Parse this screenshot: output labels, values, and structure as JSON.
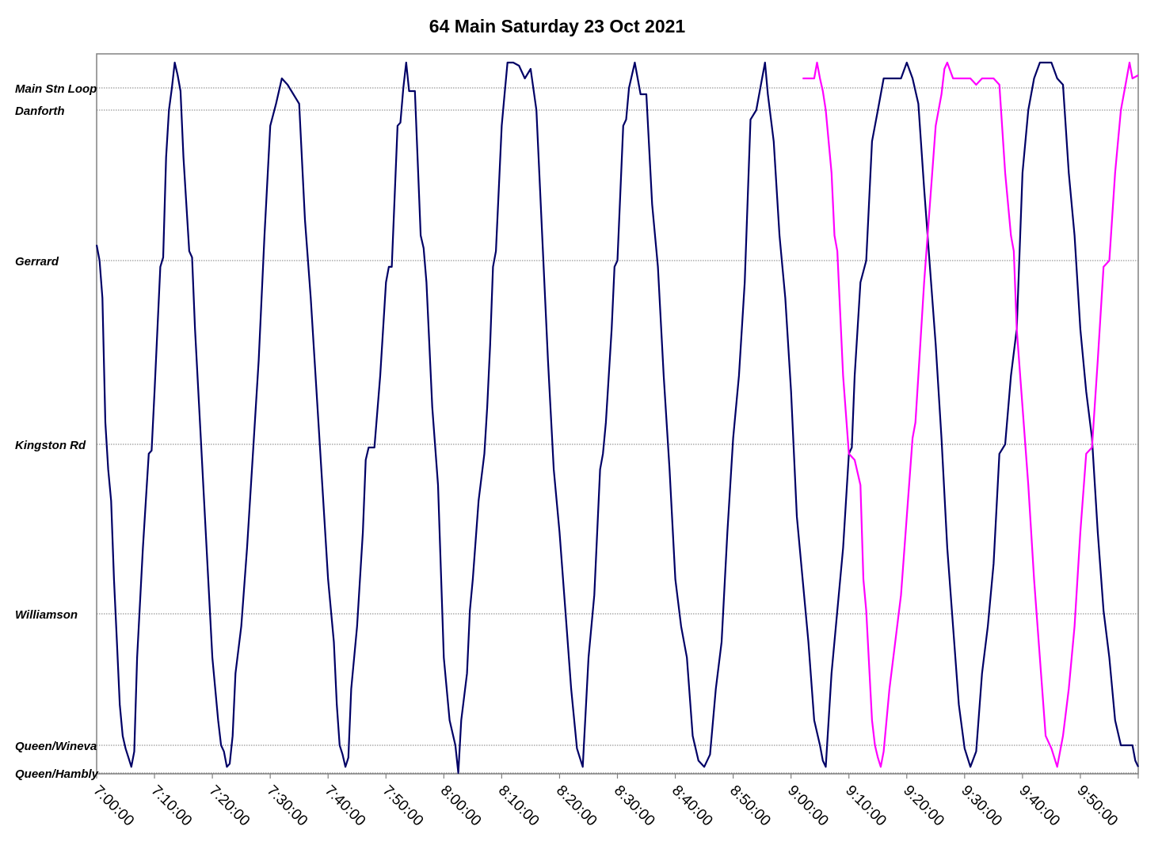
{
  "chart_data": {
    "type": "line",
    "title": "64 Main Saturday 23 Oct 2021",
    "xlabel": "",
    "ylabel": "",
    "xlim": [
      "7:00:00",
      "10:00:00"
    ],
    "stops": [
      {
        "name": "Main Stn Loop",
        "distance": 12.7
      },
      {
        "name": "Danforth",
        "distance": 12.0
      },
      {
        "name": "Gerrard",
        "distance": 7.2
      },
      {
        "name": "Kingston Rd",
        "distance": 1.3
      },
      {
        "name": "Williamson",
        "distance": -4.1
      },
      {
        "name": "Queen/Wineva",
        "distance": -8.3
      },
      {
        "name": "Queen/Hambly",
        "distance": -9.2
      }
    ],
    "x_ticks": [
      "7:00:00",
      "7:10:00",
      "7:20:00",
      "7:30:00",
      "7:40:00",
      "7:50:00",
      "8:00:00",
      "8:10:00",
      "8:20:00",
      "8:30:00",
      "8:40:00",
      "8:50:00",
      "9:00:00",
      "9:10:00",
      "9:20:00",
      "9:30:00",
      "9:40:00",
      "9:50:00"
    ],
    "grid": "horizontal at stops",
    "legend": "none",
    "series": [
      {
        "color": "#000066",
        "points": [
          [
            "7:00:00",
            7.7
          ],
          [
            "7:00:30",
            7.2
          ],
          [
            "7:01:00",
            6.0
          ],
          [
            "7:01:30",
            2.0
          ],
          [
            "7:02:00",
            0.5
          ],
          [
            "7:02:30",
            -0.5
          ],
          [
            "7:03:00",
            -3.0
          ],
          [
            "7:03:30",
            -5.0
          ],
          [
            "7:04:00",
            -7.0
          ],
          [
            "7:04:30",
            -8.0
          ],
          [
            "7:05:00",
            -8.4
          ],
          [
            "7:05:30",
            -8.7
          ],
          [
            "7:06:00",
            -9.0
          ],
          [
            "7:06:30",
            -8.5
          ],
          [
            "7:07:00",
            -5.5
          ],
          [
            "7:08:00",
            -2.0
          ],
          [
            "7:09:00",
            1.0
          ],
          [
            "7:09:30",
            1.1
          ],
          [
            "7:10:00",
            3.0
          ],
          [
            "7:11:00",
            7.0
          ],
          [
            "7:11:30",
            7.3
          ],
          [
            "7:12:00",
            10.5
          ],
          [
            "7:12:30",
            12.0
          ],
          [
            "7:13:00",
            12.7
          ],
          [
            "7:13:30",
            13.5
          ],
          [
            "7:14:00",
            13.1
          ],
          [
            "7:14:30",
            12.6
          ],
          [
            "7:15:00",
            10.5
          ],
          [
            "7:16:00",
            7.5
          ],
          [
            "7:16:30",
            7.3
          ],
          [
            "7:17:00",
            5.0
          ],
          [
            "7:18:00",
            1.5
          ],
          [
            "7:19:00",
            -2.0
          ],
          [
            "7:20:00",
            -5.5
          ],
          [
            "7:21:00",
            -7.5
          ],
          [
            "7:21:30",
            -8.3
          ],
          [
            "7:22:00",
            -8.5
          ],
          [
            "7:22:30",
            -9.0
          ],
          [
            "7:23:00",
            -8.9
          ],
          [
            "7:23:30",
            -8.0
          ],
          [
            "7:24:00",
            -6.0
          ],
          [
            "7:25:00",
            -4.5
          ],
          [
            "7:26:00",
            -2.0
          ],
          [
            "7:27:00",
            1.0
          ],
          [
            "7:28:00",
            4.0
          ],
          [
            "7:29:00",
            8.0
          ],
          [
            "7:30:00",
            11.5
          ],
          [
            "7:31:00",
            12.2
          ],
          [
            "7:32:00",
            13.0
          ],
          [
            "7:33:00",
            12.8
          ],
          [
            "7:34:00",
            12.5
          ],
          [
            "7:35:00",
            12.2
          ],
          [
            "7:36:00",
            8.5
          ],
          [
            "7:37:00",
            6.0
          ],
          [
            "7:38:00",
            3.0
          ],
          [
            "7:39:00",
            0.0
          ],
          [
            "7:40:00",
            -3.0
          ],
          [
            "7:41:00",
            -5.0
          ],
          [
            "7:41:30",
            -7.0
          ],
          [
            "7:42:00",
            -8.3
          ],
          [
            "7:42:30",
            -8.6
          ],
          [
            "7:43:00",
            -9.0
          ],
          [
            "7:43:30",
            -8.7
          ],
          [
            "7:44:00",
            -6.5
          ],
          [
            "7:45:00",
            -4.5
          ],
          [
            "7:46:00",
            -1.5
          ],
          [
            "7:46:30",
            0.8
          ],
          [
            "7:47:00",
            1.2
          ],
          [
            "7:48:00",
            1.2
          ],
          [
            "7:49:00",
            3.5
          ],
          [
            "7:50:00",
            6.5
          ],
          [
            "7:50:30",
            7.0
          ],
          [
            "7:51:00",
            7.0
          ],
          [
            "7:52:00",
            11.5
          ],
          [
            "7:52:30",
            11.6
          ],
          [
            "7:53:00",
            12.7
          ],
          [
            "7:53:30",
            13.5
          ],
          [
            "7:54:00",
            12.6
          ],
          [
            "7:55:00",
            12.6
          ],
          [
            "7:56:00",
            8.0
          ],
          [
            "7:56:30",
            7.6
          ],
          [
            "7:57:00",
            6.5
          ],
          [
            "7:58:00",
            2.5
          ],
          [
            "7:59:00",
            0.0
          ],
          [
            "8:00:00",
            -5.5
          ],
          [
            "8:01:00",
            -7.5
          ],
          [
            "8:02:00",
            -8.3
          ],
          [
            "8:02:30",
            -9.2
          ],
          [
            "8:03:00",
            -7.5
          ],
          [
            "8:04:00",
            -6.0
          ],
          [
            "8:04:30",
            -4.0
          ],
          [
            "8:05:00",
            -3.0
          ],
          [
            "8:06:00",
            -0.5
          ],
          [
            "8:07:00",
            1.0
          ],
          [
            "8:07:30",
            2.5
          ],
          [
            "8:08:00",
            4.5
          ],
          [
            "8:08:30",
            7.0
          ],
          [
            "8:09:00",
            7.5
          ],
          [
            "8:10:00",
            11.5
          ],
          [
            "8:10:30",
            12.5
          ],
          [
            "8:11:00",
            13.5
          ],
          [
            "8:12:00",
            13.5
          ],
          [
            "8:13:00",
            13.4
          ],
          [
            "8:14:00",
            13.0
          ],
          [
            "8:15:00",
            13.3
          ],
          [
            "8:16:00",
            12.0
          ],
          [
            "8:17:00",
            8.0
          ],
          [
            "8:18:00",
            4.0
          ],
          [
            "8:19:00",
            0.5
          ],
          [
            "8:20:00",
            -1.5
          ],
          [
            "8:21:00",
            -4.0
          ],
          [
            "8:22:00",
            -6.5
          ],
          [
            "8:23:00",
            -8.4
          ],
          [
            "8:23:30",
            -8.7
          ],
          [
            "8:24:00",
            -9.0
          ],
          [
            "8:25:00",
            -5.5
          ],
          [
            "8:26:00",
            -3.5
          ],
          [
            "8:27:00",
            0.5
          ],
          [
            "8:27:30",
            1.0
          ],
          [
            "8:28:00",
            2.0
          ],
          [
            "8:29:00",
            5.0
          ],
          [
            "8:29:30",
            7.0
          ],
          [
            "8:30:00",
            7.2
          ],
          [
            "8:31:00",
            11.5
          ],
          [
            "8:31:30",
            11.7
          ],
          [
            "8:32:00",
            12.7
          ],
          [
            "8:33:00",
            13.5
          ],
          [
            "8:34:00",
            12.5
          ],
          [
            "8:35:00",
            12.5
          ],
          [
            "8:36:00",
            9.0
          ],
          [
            "8:37:00",
            7.0
          ],
          [
            "8:38:00",
            3.5
          ],
          [
            "8:39:00",
            0.5
          ],
          [
            "8:40:00",
            -3.0
          ],
          [
            "8:41:00",
            -4.5
          ],
          [
            "8:42:00",
            -5.5
          ],
          [
            "8:43:00",
            -8.0
          ],
          [
            "8:44:00",
            -8.8
          ],
          [
            "8:45:00",
            -9.0
          ],
          [
            "8:46:00",
            -8.6
          ],
          [
            "8:47:00",
            -6.5
          ],
          [
            "8:48:00",
            -5.0
          ],
          [
            "8:49:00",
            -1.5
          ],
          [
            "8:50:00",
            1.5
          ],
          [
            "8:51:00",
            3.5
          ],
          [
            "8:52:00",
            6.5
          ],
          [
            "8:53:00",
            11.7
          ],
          [
            "8:54:00",
            12.0
          ],
          [
            "8:55:00",
            13.0
          ],
          [
            "8:55:30",
            13.5
          ],
          [
            "8:56:00",
            12.5
          ],
          [
            "8:57:00",
            11.0
          ],
          [
            "8:58:00",
            8.0
          ],
          [
            "8:59:00",
            6.0
          ],
          [
            "9:00:00",
            3.0
          ],
          [
            "9:01:00",
            -1.0
          ],
          [
            "9:02:00",
            -3.0
          ],
          [
            "9:03:00",
            -5.0
          ],
          [
            "9:04:00",
            -7.5
          ],
          [
            "9:05:00",
            -8.3
          ],
          [
            "9:05:30",
            -8.8
          ],
          [
            "9:06:00",
            -9.0
          ],
          [
            "9:07:00",
            -6.0
          ],
          [
            "9:08:00",
            -4.0
          ],
          [
            "9:09:00",
            -2.0
          ],
          [
            "9:10:00",
            1.0
          ],
          [
            "9:10:30",
            1.2
          ],
          [
            "9:11:00",
            3.5
          ],
          [
            "9:12:00",
            6.5
          ],
          [
            "9:13:00",
            7.2
          ],
          [
            "9:14:00",
            11.0
          ],
          [
            "9:15:00",
            12.0
          ],
          [
            "9:16:00",
            13.0
          ],
          [
            "9:17:00",
            13.0
          ],
          [
            "9:18:00",
            13.0
          ],
          [
            "9:19:00",
            13.0
          ],
          [
            "9:20:00",
            13.5
          ],
          [
            "9:21:00",
            13.0
          ],
          [
            "9:22:00",
            12.2
          ],
          [
            "9:23:00",
            9.5
          ],
          [
            "9:24:00",
            7.0
          ],
          [
            "9:25:00",
            4.5
          ],
          [
            "9:26:00",
            1.5
          ],
          [
            "9:27:00",
            -2.0
          ],
          [
            "9:28:00",
            -4.5
          ],
          [
            "9:29:00",
            -7.0
          ],
          [
            "9:30:00",
            -8.4
          ],
          [
            "9:31:00",
            -9.0
          ],
          [
            "9:32:00",
            -8.5
          ],
          [
            "9:33:00",
            -6.0
          ],
          [
            "9:34:00",
            -4.5
          ],
          [
            "9:35:00",
            -2.5
          ],
          [
            "9:36:00",
            1.0
          ],
          [
            "9:37:00",
            1.3
          ],
          [
            "9:38:00",
            3.5
          ],
          [
            "9:39:00",
            5.0
          ],
          [
            "9:40:00",
            10.0
          ],
          [
            "9:41:00",
            12.0
          ],
          [
            "9:42:00",
            13.0
          ],
          [
            "9:43:00",
            13.5
          ],
          [
            "9:44:00",
            13.5
          ],
          [
            "9:45:00",
            13.5
          ],
          [
            "9:46:00",
            13.0
          ],
          [
            "9:47:00",
            12.8
          ],
          [
            "9:48:00",
            10.0
          ],
          [
            "9:49:00",
            8.0
          ],
          [
            "9:50:00",
            5.0
          ],
          [
            "9:51:00",
            3.0
          ],
          [
            "9:52:00",
            1.5
          ],
          [
            "9:53:00",
            -1.5
          ],
          [
            "9:54:00",
            -4.0
          ],
          [
            "9:55:00",
            -5.5
          ],
          [
            "9:56:00",
            -7.5
          ],
          [
            "9:57:00",
            -8.3
          ],
          [
            "9:58:00",
            -8.3
          ],
          [
            "9:59:00",
            -8.3
          ],
          [
            "9:59:30",
            -8.8
          ],
          [
            "10:00:00",
            -9.0
          ]
        ]
      },
      {
        "color": "#ff00ff",
        "points": [
          [
            "9:02:00",
            13.0
          ],
          [
            "9:03:00",
            13.0
          ],
          [
            "9:04:00",
            13.0
          ],
          [
            "9:04:30",
            13.5
          ],
          [
            "9:05:00",
            13.0
          ],
          [
            "9:05:30",
            12.6
          ],
          [
            "9:06:00",
            12.0
          ],
          [
            "9:07:00",
            10.0
          ],
          [
            "9:07:30",
            8.0
          ],
          [
            "9:08:00",
            7.5
          ],
          [
            "9:09:00",
            3.5
          ],
          [
            "9:10:00",
            1.0
          ],
          [
            "9:11:00",
            0.8
          ],
          [
            "9:12:00",
            0.0
          ],
          [
            "9:12:30",
            -3.0
          ],
          [
            "9:13:00",
            -4.0
          ],
          [
            "9:14:00",
            -7.5
          ],
          [
            "9:14:30",
            -8.3
          ],
          [
            "9:15:00",
            -8.7
          ],
          [
            "9:15:30",
            -9.0
          ],
          [
            "9:16:00",
            -8.5
          ],
          [
            "9:17:00",
            -6.5
          ],
          [
            "9:18:00",
            -5.0
          ],
          [
            "9:19:00",
            -3.5
          ],
          [
            "9:20:00",
            -1.0
          ],
          [
            "9:21:00",
            1.5
          ],
          [
            "9:21:30",
            2.0
          ],
          [
            "9:22:00",
            3.5
          ],
          [
            "9:23:00",
            6.5
          ],
          [
            "9:24:00",
            9.0
          ],
          [
            "9:25:00",
            11.5
          ],
          [
            "9:26:00",
            12.5
          ],
          [
            "9:26:30",
            13.3
          ],
          [
            "9:27:00",
            13.5
          ],
          [
            "9:28:00",
            13.0
          ],
          [
            "9:29:00",
            13.0
          ],
          [
            "9:30:00",
            13.0
          ],
          [
            "9:31:00",
            13.0
          ],
          [
            "9:32:00",
            12.8
          ],
          [
            "9:33:00",
            13.0
          ],
          [
            "9:34:00",
            13.0
          ],
          [
            "9:35:00",
            13.0
          ],
          [
            "9:36:00",
            12.8
          ],
          [
            "9:37:00",
            10.0
          ],
          [
            "9:38:00",
            8.0
          ],
          [
            "9:38:30",
            7.5
          ],
          [
            "9:39:00",
            5.0
          ],
          [
            "9:40:00",
            2.5
          ],
          [
            "9:41:00",
            0.0
          ],
          [
            "9:42:00",
            -3.0
          ],
          [
            "9:43:00",
            -5.5
          ],
          [
            "9:44:00",
            -8.0
          ],
          [
            "9:45:00",
            -8.4
          ],
          [
            "9:46:00",
            -9.0
          ],
          [
            "9:47:00",
            -8.0
          ],
          [
            "9:48:00",
            -6.5
          ],
          [
            "9:49:00",
            -4.5
          ],
          [
            "9:50:00",
            -1.5
          ],
          [
            "9:51:00",
            1.0
          ],
          [
            "9:52:00",
            1.2
          ],
          [
            "9:53:00",
            4.0
          ],
          [
            "9:54:00",
            7.0
          ],
          [
            "9:55:00",
            7.2
          ],
          [
            "9:56:00",
            10.0
          ],
          [
            "9:57:00",
            12.0
          ],
          [
            "9:58:00",
            13.0
          ],
          [
            "9:58:30",
            13.5
          ],
          [
            "9:59:00",
            13.0
          ],
          [
            "10:00:00",
            13.1
          ]
        ]
      }
    ]
  }
}
